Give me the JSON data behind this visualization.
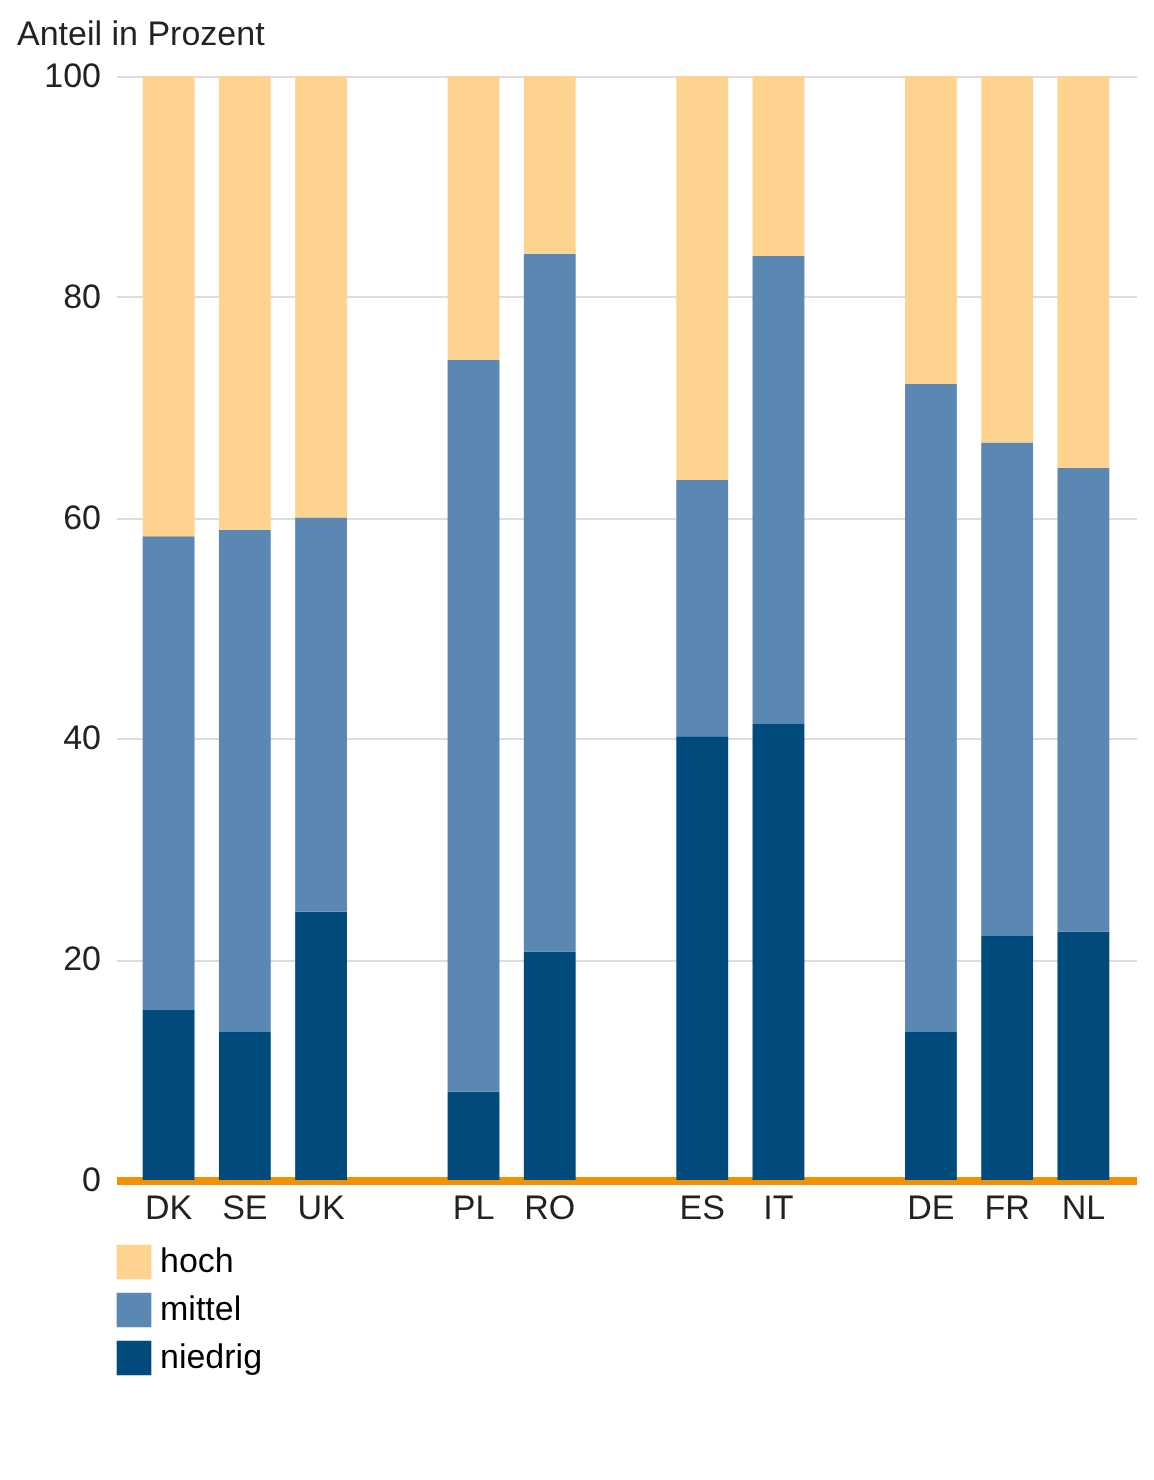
{
  "chart_data": {
    "type": "bar",
    "stacked": true,
    "ylabel": "Anteil in Prozent",
    "categories": [
      "DK",
      "SE",
      "UK",
      null,
      "PL",
      "RO",
      null,
      "ES",
      "IT",
      null,
      "DE",
      "FR",
      "NL"
    ],
    "series": [
      {
        "name": "niedrig",
        "color": "#004b7c",
        "values": [
          15.4,
          13.4,
          24.3,
          null,
          8.0,
          20.7,
          null,
          40.2,
          41.3,
          null,
          13.4,
          22.1,
          22.5
        ]
      },
      {
        "name": "mittel",
        "color": "#5b87b3",
        "values": [
          42.9,
          45.5,
          35.7,
          null,
          66.3,
          63.2,
          null,
          23.2,
          42.4,
          null,
          58.7,
          44.7,
          42.0
        ]
      },
      {
        "name": "hoch",
        "color": "#fdd38f",
        "values": [
          41.7,
          41.1,
          40.0,
          null,
          25.7,
          16.1,
          null,
          36.6,
          16.3,
          null,
          27.9,
          33.2,
          35.5
        ]
      }
    ],
    "ylim": [
      0,
      100
    ],
    "yticks": [
      0,
      20,
      40,
      60,
      80,
      100
    ],
    "grid": "y",
    "legend": "bottom left"
  }
}
